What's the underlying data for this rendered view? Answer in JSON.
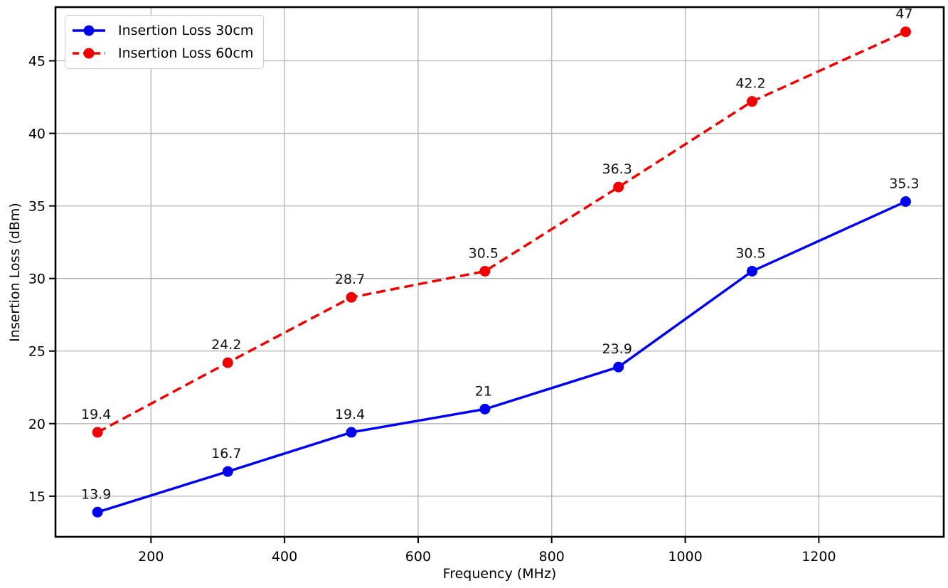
{
  "figure": {
    "background": "#ffffff",
    "spine_color": "#000000",
    "grid_color": "#b3b3b3",
    "tick_color": "#000000",
    "annotation_color": "#111111"
  },
  "chart_data": {
    "type": "line",
    "title": "",
    "xlabel": "Frequency (MHz)",
    "ylabel": "Insertion Loss (dBm)",
    "x": [
      120,
      315,
      500,
      700,
      900,
      1100,
      1330
    ],
    "series": [
      {
        "name": "Insertion Loss 30cm",
        "color": "#0000f0",
        "line_style": "solid",
        "values": [
          13.9,
          16.7,
          19.4,
          21,
          23.9,
          30.5,
          35.3
        ],
        "point_labels": [
          "13.9",
          "16.7",
          "19.4",
          "21",
          "23.9",
          "30.5",
          "35.3"
        ]
      },
      {
        "name": "Insertion Loss 60cm",
        "color": "#f00000",
        "line_style": "dashed",
        "values": [
          19.4,
          24.2,
          28.7,
          30.5,
          36.3,
          42.2,
          47
        ],
        "point_labels": [
          "19.4",
          "24.2",
          "28.7",
          "30.5",
          "36.3",
          "42.2",
          "47"
        ]
      }
    ],
    "xticks": [
      200,
      400,
      600,
      800,
      1000,
      1200
    ],
    "yticks": [
      15,
      20,
      25,
      30,
      35,
      40,
      45
    ],
    "xlim": [
      57,
      1387
    ],
    "ylim": [
      12.2,
      48.7
    ],
    "grid": true,
    "legend_position": "upper-left"
  }
}
